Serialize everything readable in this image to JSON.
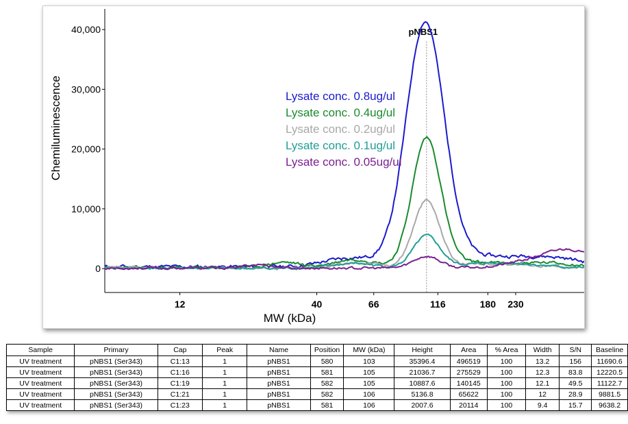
{
  "chart_data": {
    "type": "line",
    "x_scale": "log",
    "xlabel": "MW (kDa)",
    "ylabel": "Chemiluminescence",
    "x_ticks": [
      12,
      40,
      66,
      116,
      180,
      230
    ],
    "y_ticks": [
      "0",
      "10,000",
      "20,000",
      "30,000",
      "40,000"
    ],
    "y_tick_values": [
      0,
      10000,
      20000,
      30000,
      40000
    ],
    "ylim": [
      -4000,
      43000
    ],
    "xlim": [
      6.2,
      420
    ],
    "grid": false,
    "peak_label": "pNBS1",
    "peak_mw": 105,
    "legend_position": "upper-center",
    "series": [
      {
        "name": "Lysate conc. 0.8ug/ul",
        "color": "#1a1acc",
        "peak_height": 38500,
        "peak_width": 0.07,
        "base": 300,
        "noise": 550,
        "seed": 11,
        "bumps": [
          [
            54,
            1500,
            0.1
          ],
          [
            92,
            3200,
            0.05
          ],
          [
            80,
            1200,
            0.06
          ],
          [
            150,
            1500,
            0.12
          ],
          [
            250,
            1200,
            0.12
          ],
          [
            350,
            900,
            0.1
          ]
        ]
      },
      {
        "name": "Lysate conc. 0.4ug/ul",
        "color": "#1a8a2e",
        "peak_height": 21400,
        "peak_width": 0.055,
        "base": 150,
        "noise": 450,
        "seed": 23,
        "bumps": [
          [
            30,
            900,
            0.06
          ],
          [
            56,
            1400,
            0.08
          ],
          [
            150,
            900,
            0.12
          ],
          [
            300,
            800,
            0.12
          ]
        ]
      },
      {
        "name": "Lysate conc. 0.2ug/ul",
        "color": "#a8a8a8",
        "peak_height": 11200,
        "peak_width": 0.05,
        "base": 100,
        "noise": 400,
        "seed": 37,
        "bumps": [
          [
            58,
            900,
            0.08
          ],
          [
            200,
            700,
            0.15
          ]
        ]
      },
      {
        "name": "Lysate conc. 0.1ug/ul",
        "color": "#1f9e96",
        "peak_height": 5300,
        "peak_width": 0.05,
        "base": 50,
        "noise": 350,
        "seed": 41,
        "bumps": [
          [
            56,
            800,
            0.08
          ],
          [
            200,
            900,
            0.15
          ]
        ]
      },
      {
        "name": "Lysate conc. 0.05ug/ul",
        "color": "#7a1f8f",
        "peak_height": 2000,
        "peak_width": 0.05,
        "base": 80,
        "noise": 380,
        "seed": 53,
        "bumps": [
          [
            24,
            600,
            0.05
          ],
          [
            300,
            1600,
            0.12
          ],
          [
            380,
            2000,
            0.08
          ]
        ]
      }
    ]
  },
  "table": {
    "headers": [
      "Sample",
      "Primary",
      "Cap",
      "Peak",
      "Name",
      "Position",
      "MW (kDa)",
      "Height",
      "Area",
      "% Area",
      "Width",
      "S/N",
      "Baseline"
    ],
    "rows": [
      [
        "UV treatment",
        "pNBS1 (Ser343)",
        "C1:13",
        "1",
        "pNBS1",
        "580",
        "103",
        "35396.4",
        "496519",
        "100",
        "13.2",
        "156",
        "11690.6"
      ],
      [
        "UV treatment",
        "pNBS1 (Ser343)",
        "C1:16",
        "1",
        "pNBS1",
        "581",
        "105",
        "21036.7",
        "275529",
        "100",
        "12.3",
        "83.8",
        "12220.5"
      ],
      [
        "UV treatment",
        "pNBS1 (Ser343)",
        "C1:19",
        "1",
        "pNBS1",
        "582",
        "105",
        "10887.6",
        "140145",
        "100",
        "12.1",
        "49.5",
        "11122.7"
      ],
      [
        "UV treatment",
        "pNBS1 (Ser343)",
        "C1:21",
        "1",
        "pNBS1",
        "582",
        "106",
        "5136.8",
        "65622",
        "100",
        "12",
        "28.9",
        "9881.5"
      ],
      [
        "UV treatment",
        "pNBS1 (Ser343)",
        "C1:23",
        "1",
        "pNBS1",
        "581",
        "106",
        "2007.6",
        "20114",
        "100",
        "9.4",
        "15.7",
        "9638.2"
      ]
    ]
  }
}
